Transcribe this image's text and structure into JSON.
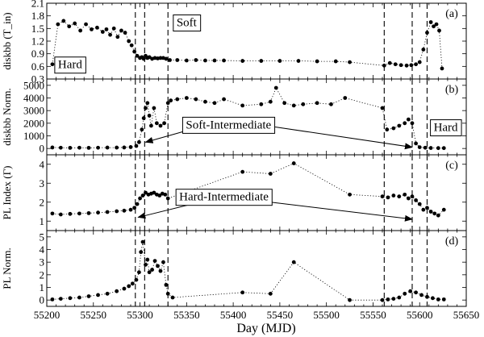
{
  "chart_data": {
    "type": "scatter",
    "xlabel": "Day (MJD)",
    "xlim": [
      55200,
      55650
    ],
    "x_ticks": [
      55200,
      55250,
      55300,
      55350,
      55400,
      55450,
      55500,
      55550,
      55600,
      55650
    ],
    "vlines": [
      55295,
      55305,
      55330,
      55562,
      55592,
      55608
    ],
    "panels": [
      {
        "tag": "(a)",
        "ylabel": "diskbb (T_in)",
        "ylim": [
          0.3,
          2.1
        ],
        "y_ticks": [
          0.3,
          0.6,
          0.9,
          1.2,
          1.5,
          1.8,
          2.1
        ],
        "labels": [
          {
            "text": "Hard",
            "x": 55225,
            "y": 0.65,
            "box": true
          },
          {
            "text": "Soft",
            "x": 55350,
            "y": 1.65,
            "box": true
          }
        ],
        "x": [
          55206,
          55212,
          55218,
          55224,
          55230,
          55236,
          55242,
          55248,
          55254,
          55260,
          55264,
          55268,
          55272,
          55276,
          55280,
          55284,
          55288,
          55291,
          55294,
          55297,
          55300,
          55302,
          55304,
          55306,
          55308,
          55310,
          55313,
          55316,
          55319,
          55322,
          55325,
          55328,
          55332,
          55340,
          55350,
          55360,
          55370,
          55380,
          55390,
          55410,
          55430,
          55450,
          55470,
          55490,
          55510,
          55525,
          55562,
          55568,
          55574,
          55580,
          55586,
          55591,
          55596,
          55600,
          55604,
          55608,
          55612,
          55615,
          55618,
          55621,
          55624
        ],
        "y": [
          0.65,
          1.6,
          1.68,
          1.55,
          1.62,
          1.45,
          1.6,
          1.48,
          1.52,
          1.42,
          1.48,
          1.35,
          1.5,
          1.3,
          1.45,
          1.4,
          1.2,
          1.1,
          0.95,
          0.85,
          0.8,
          0.82,
          0.78,
          0.85,
          0.8,
          0.82,
          0.78,
          0.8,
          0.79,
          0.8,
          0.8,
          0.78,
          0.75,
          0.75,
          0.74,
          0.75,
          0.74,
          0.74,
          0.74,
          0.73,
          0.73,
          0.73,
          0.73,
          0.72,
          0.72,
          0.7,
          0.62,
          0.68,
          0.65,
          0.63,
          0.62,
          0.63,
          0.65,
          0.7,
          1.0,
          1.4,
          1.65,
          1.55,
          1.6,
          1.45,
          0.55
        ]
      },
      {
        "tag": "(b)",
        "ylabel": "diskbb Norm.",
        "ylim": [
          -500,
          5500
        ],
        "y_ticks": [
          0,
          1000,
          2000,
          3000,
          4000,
          5000
        ],
        "labels": [
          {
            "text": "Soft-Intermediate",
            "x": 55395,
            "y": 1900,
            "box": true
          },
          {
            "text": "Hard",
            "x": 55628,
            "y": 1700,
            "box": true
          }
        ],
        "arrows": [
          {
            "from": [
              55364,
              1700
            ],
            "to": [
              55306,
              500
            ]
          },
          {
            "from": [
              55445,
              1700
            ],
            "to": [
              55592,
              100
            ]
          }
        ],
        "x": [
          55206,
          55215,
          55225,
          55235,
          55245,
          55255,
          55265,
          55275,
          55283,
          55290,
          55296,
          55299,
          55302,
          55304,
          55306,
          55308,
          55310,
          55312,
          55315,
          55318,
          55322,
          55326,
          55330,
          55333,
          55340,
          55350,
          55360,
          55370,
          55380,
          55390,
          55410,
          55430,
          55440,
          55446,
          55455,
          55465,
          55475,
          55490,
          55505,
          55520,
          55560,
          55565,
          55572,
          55578,
          55584,
          55588,
          55592,
          55596,
          55600,
          55606,
          55612,
          55620,
          55626
        ],
        "y": [
          80,
          60,
          50,
          60,
          50,
          60,
          70,
          70,
          80,
          110,
          200,
          500,
          1500,
          2400,
          3200,
          3600,
          2600,
          1800,
          3200,
          2000,
          1800,
          2000,
          3600,
          3800,
          3900,
          4000,
          3900,
          3700,
          3600,
          3900,
          3400,
          3500,
          3700,
          4800,
          3600,
          3400,
          3500,
          3600,
          3500,
          4000,
          3200,
          1500,
          1600,
          1800,
          2000,
          2300,
          2000,
          400,
          100,
          60,
          40,
          30,
          30
        ]
      },
      {
        "tag": "(c)",
        "ylabel": "PL Index (Γ)",
        "ylim": [
          0.5,
          4.5
        ],
        "y_ticks": [
          1,
          2,
          3,
          4
        ],
        "labels": [
          {
            "text": "Hard-Intermediate",
            "x": 55390,
            "y": 2.3,
            "box": true
          }
        ],
        "arrows": [
          {
            "from": [
              55364,
              2.0
            ],
            "to": [
              55298,
              1.2
            ]
          },
          {
            "from": [
              55440,
              2.0
            ],
            "to": [
              55592,
              1.1
            ]
          }
        ],
        "x": [
          55206,
          55215,
          55225,
          55235,
          55245,
          55255,
          55265,
          55275,
          55283,
          55290,
          55294,
          55297,
          55300,
          55303,
          55306,
          55309,
          55312,
          55315,
          55318,
          55321,
          55324,
          55327,
          55330,
          55410,
          55440,
          55465,
          55525,
          55560,
          55566,
          55572,
          55578,
          55584,
          55588,
          55592,
          55596,
          55600,
          55604,
          55608,
          55612,
          55616,
          55620,
          55626
        ],
        "y": [
          1.4,
          1.35,
          1.38,
          1.4,
          1.42,
          1.45,
          1.48,
          1.52,
          1.55,
          1.6,
          1.7,
          1.9,
          2.2,
          2.35,
          2.5,
          2.4,
          2.45,
          2.5,
          2.4,
          2.35,
          2.45,
          2.4,
          2.2,
          3.6,
          3.5,
          4.05,
          2.4,
          2.3,
          2.25,
          2.35,
          2.3,
          2.4,
          2.2,
          2.3,
          2.1,
          1.9,
          1.6,
          1.7,
          1.5,
          1.4,
          1.3,
          1.6
        ]
      },
      {
        "tag": "(d)",
        "ylabel": "PL Norm.",
        "ylim": [
          -0.5,
          5.5
        ],
        "y_ticks": [
          0,
          1,
          2,
          3,
          4,
          5
        ],
        "x": [
          55206,
          55215,
          55225,
          55235,
          55245,
          55255,
          55265,
          55275,
          55283,
          55288,
          55292,
          55296,
          55299,
          55301,
          55303,
          55306,
          55308,
          55310,
          55313,
          55316,
          55319,
          55322,
          55325,
          55328,
          55330,
          55335,
          55410,
          55440,
          55465,
          55525,
          55560,
          55566,
          55572,
          55578,
          55584,
          55590,
          55596,
          55602,
          55608,
          55614,
          55620,
          55626
        ],
        "y": [
          0.05,
          0.1,
          0.15,
          0.2,
          0.3,
          0.4,
          0.5,
          0.7,
          0.9,
          1.1,
          1.3,
          1.6,
          2.2,
          3.8,
          4.6,
          2.8,
          3.2,
          2.2,
          2.4,
          3.1,
          2.7,
          2.3,
          3.0,
          1.2,
          0.5,
          0.2,
          0.6,
          0.5,
          3.0,
          0.0,
          0.0,
          0.05,
          0.1,
          0.2,
          0.5,
          0.7,
          0.6,
          0.4,
          0.25,
          0.15,
          0.05,
          0.05
        ]
      }
    ]
  }
}
